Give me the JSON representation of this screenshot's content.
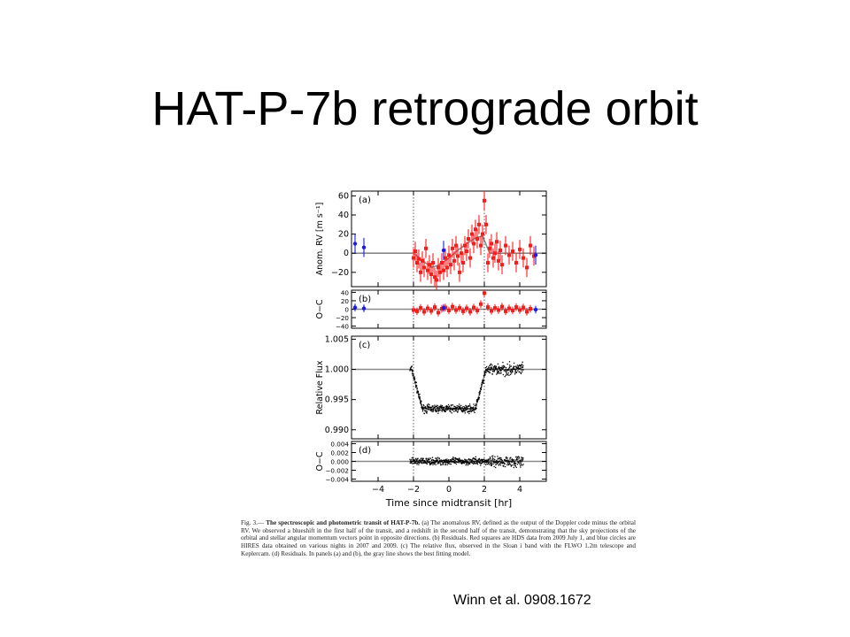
{
  "slide": {
    "title": "HAT-P-7b retrograde orbit",
    "citation": "Winn et al. 0908.1672"
  },
  "caption": {
    "fig_label": "Fig. 3.—",
    "heading": "The spectroscopic and photometric transit of HAT-P-7b.",
    "body": "(a) The anomalous RV, defined as the output of the Doppler code minus the orbital RV. We observed a blueshift in the first half of the transit, and a redshift in the second half of the transit, demonstrating that the sky projections of the orbital and stellar angular momentum vectors point in opposite directions. (b) Residuals. Red squares are HDS data from 2009 July 1, and blue circles are HIRES data obtained on various nights in 2007 and 2009. (c) The relative flux, observed in the Sloan i band with the FLWO 1.2m telescope and Keplercam. (d) Residuals. In panels (a) and (b), the gray line shows the best fitting model."
  },
  "chart_data": {
    "type": "scatter",
    "x_label": "Time since midtransit [hr]",
    "xlim": [
      -5.5,
      5.5
    ],
    "x_ticks": [
      "−4",
      "−2",
      "0",
      "2",
      "4"
    ],
    "x_tick_values": [
      -4,
      -2,
      0,
      2,
      4
    ],
    "transit_markers": [
      -2,
      2
    ],
    "colors": {
      "hds": "#ff1a1a",
      "hires": "#1a1aee",
      "model": "#888888",
      "photometry": "#000000"
    },
    "panels": [
      {
        "id": "a",
        "label": "(a)",
        "ylabel": "Anom. RV [m s⁻¹]",
        "ylim": [
          -35,
          65
        ],
        "y_ticks": [
          "60",
          "40",
          "20",
          "0",
          "−20"
        ],
        "y_tick_values": [
          60,
          40,
          20,
          0,
          -20
        ],
        "model": {
          "x": [
            -5.5,
            -2.0,
            -1.0,
            -0.5,
            0.0,
            0.5,
            1.0,
            1.5,
            1.9,
            2.3,
            5.5
          ],
          "y": [
            0,
            0,
            -15,
            -12,
            -5,
            3,
            10,
            16,
            18,
            0,
            0
          ]
        },
        "hds_x": [
          -2.0,
          -1.9,
          -1.8,
          -1.7,
          -1.6,
          -1.5,
          -1.4,
          -1.3,
          -1.2,
          -1.1,
          -1.0,
          -0.9,
          -0.8,
          -0.7,
          -0.6,
          -0.5,
          -0.4,
          -0.3,
          -0.2,
          -0.1,
          0.0,
          0.1,
          0.2,
          0.3,
          0.4,
          0.5,
          0.6,
          0.7,
          0.8,
          0.9,
          1.0,
          1.1,
          1.2,
          1.3,
          1.4,
          1.5,
          1.6,
          1.7,
          1.8,
          1.9,
          2.0,
          2.1,
          2.2,
          2.3,
          2.4,
          2.5,
          2.6,
          2.7,
          2.8,
          2.9,
          3.0,
          3.2,
          3.4,
          3.6,
          3.8,
          4.0,
          4.2,
          4.4,
          4.6,
          4.8
        ],
        "hds_y": [
          -5,
          2,
          -10,
          -6,
          -20,
          -8,
          -15,
          5,
          -18,
          -12,
          -22,
          -10,
          -25,
          -28,
          -15,
          -20,
          -10,
          -18,
          -5,
          -15,
          -2,
          -12,
          5,
          -8,
          8,
          -3,
          -20,
          0,
          -10,
          8,
          2,
          15,
          -5,
          20,
          10,
          25,
          15,
          30,
          8,
          20,
          55,
          30,
          -10,
          5,
          10,
          -5,
          0,
          12,
          -8,
          3,
          -12,
          8,
          -2,
          2,
          -10,
          4,
          -5,
          -15,
          8,
          -3
        ],
        "hires_x": [
          -5.3,
          -4.8,
          -0.3,
          4.9
        ],
        "hires_y": [
          10,
          6,
          3,
          -2
        ],
        "error": 10
      },
      {
        "id": "b",
        "label": "(b)",
        "ylabel": "O−C",
        "ylim": [
          -45,
          45
        ],
        "y_ticks": [
          "40",
          "20",
          "0",
          "−20",
          "−40"
        ],
        "y_tick_values": [
          40,
          20,
          0,
          -20,
          -40
        ],
        "hds_x": [
          -2.0,
          -1.8,
          -1.6,
          -1.4,
          -1.2,
          -1.0,
          -0.8,
          -0.6,
          -0.4,
          -0.2,
          0.0,
          0.2,
          0.4,
          0.6,
          0.8,
          1.0,
          1.2,
          1.4,
          1.6,
          1.8,
          2.0,
          2.2,
          2.4,
          2.6,
          2.8,
          3.0,
          3.2,
          3.4,
          3.6,
          3.8,
          4.0,
          4.2,
          4.4,
          4.6
        ],
        "hds_y": [
          -2,
          -5,
          3,
          -6,
          2,
          -4,
          5,
          -8,
          1,
          4,
          -3,
          6,
          -2,
          3,
          -5,
          2,
          -6,
          4,
          -3,
          12,
          38,
          5,
          -4,
          3,
          -2,
          6,
          -5,
          2,
          -3,
          5,
          -2,
          4,
          -6,
          1
        ],
        "hires_x": [
          -5.3,
          -4.8,
          -0.3,
          4.9
        ],
        "hires_y": [
          4,
          2,
          3,
          -1
        ],
        "error": 9
      },
      {
        "id": "c",
        "label": "(c)",
        "ylabel": "Relative Flux",
        "ylim": [
          0.9885,
          1.0055
        ],
        "y_ticks": [
          "1.005",
          "1.000",
          "0.995",
          "0.990"
        ],
        "y_tick_values": [
          1.005,
          1.0,
          0.995,
          0.99
        ],
        "model": {
          "x": [
            -5.5,
            -2.1,
            -1.5,
            1.5,
            2.1,
            5.5
          ],
          "y": [
            1.0,
            1.0,
            0.9935,
            0.9935,
            1.0,
            1.0
          ]
        }
      },
      {
        "id": "d",
        "label": "(d)",
        "ylabel": "O−C",
        "ylim": [
          -0.0045,
          0.0045
        ],
        "y_ticks": [
          "0.004",
          "0.002",
          "0.000",
          "−0.002",
          "−0.004"
        ],
        "y_tick_values": [
          0.004,
          0.002,
          0.0,
          -0.002,
          -0.004
        ]
      }
    ],
    "photometry": {
      "x_range": [
        -2.2,
        4.2
      ],
      "n_points": 560
    }
  }
}
